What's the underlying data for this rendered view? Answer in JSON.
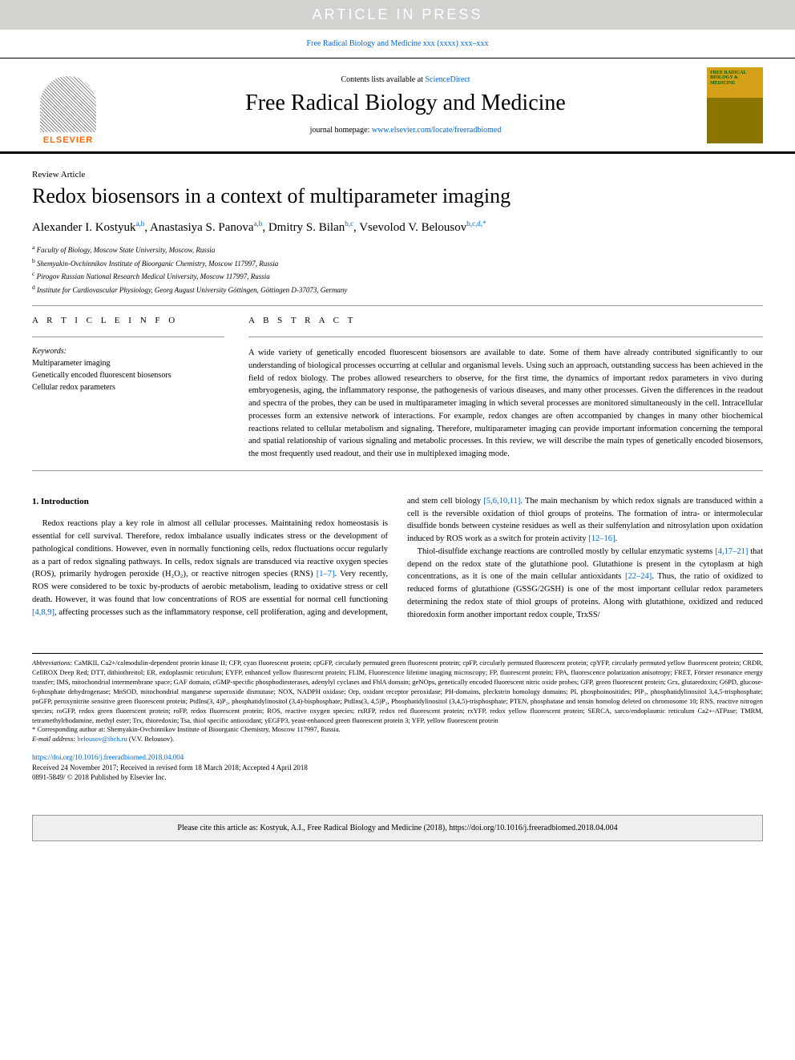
{
  "banner": "ARTICLE IN PRESS",
  "journal_ref": "Free Radical Biology and Medicine xxx (xxxx) xxx–xxx",
  "header": {
    "contents_prefix": "Contents lists available at ",
    "contents_link": "ScienceDirect",
    "journal_title": "Free Radical Biology and Medicine",
    "homepage_prefix": "journal homepage: ",
    "homepage_link": "www.elsevier.com/locate/freeradbiomed",
    "publisher_logo_text": "ELSEVIER",
    "cover_text": "FREE RADICAL BIOLOGY & MEDICINE"
  },
  "article": {
    "type": "Review Article",
    "title": "Redox biosensors in a context of multiparameter imaging",
    "authors_html": "Alexander I. Kostyuk<sup>a,b</sup>, Anastasiya S. Panova<sup>a,b</sup>, Dmitry S. Bilan<sup>b,c</sup>, Vsevolod V. Belousov<sup>b,c,d,*</sup>",
    "affiliations": [
      {
        "sup": "a",
        "text": "Faculty of Biology, Moscow State University, Moscow, Russia"
      },
      {
        "sup": "b",
        "text": "Shemyakin-Ovchinnikov Institute of Bioorganic Chemistry, Moscow 117997, Russia"
      },
      {
        "sup": "c",
        "text": "Pirogov Russian National Research Medical University, Moscow 117997, Russia"
      },
      {
        "sup": "d",
        "text": "Institute for Cardiovascular Physiology, Georg August University Göttingen, Göttingen D-37073, Germany"
      }
    ]
  },
  "info": {
    "heading": "A R T I C L E  I N F O",
    "keywords_label": "Keywords:",
    "keywords": [
      "Multiparameter imaging",
      "Genetically encoded fluorescent biosensors",
      "Cellular redox parameters"
    ]
  },
  "abstract": {
    "heading": "A B S T R A C T",
    "text": "A wide variety of genetically encoded fluorescent biosensors are available to date. Some of them have already contributed significantly to our understanding of biological processes occurring at cellular and organismal levels. Using such an approach, outstanding success has been achieved in the field of redox biology. The probes allowed researchers to observe, for the first time, the dynamics of important redox parameters in vivo during embryogenesis, aging, the inflammatory response, the pathogenesis of various diseases, and many other processes. Given the differences in the readout and spectra of the probes, they can be used in multiparameter imaging in which several processes are monitored simultaneously in the cell. Intracellular processes form an extensive network of interactions. For example, redox changes are often accompanied by changes in many other biochemical reactions related to cellular metabolism and signaling. Therefore, multiparameter imaging can provide important information concerning the temporal and spatial relationship of various signaling and metabolic processes. In this review, we will describe the main types of genetically encoded biosensors, the most frequently used readout, and their use in multiplexed imaging mode."
  },
  "body": {
    "section1_heading": "1. Introduction",
    "p1a": "Redox reactions play a key role in almost all cellular processes. Maintaining redox homeostasis is essential for cell survival. Therefore, redox imbalance usually indicates stress or the development of pathological conditions. However, even in normally functioning cells, redox fluctuations occur regularly as a part of redox signaling pathways. In cells, redox signals are transduced via reactive oxygen species (ROS), primarily hydrogen peroxide (H₂O₂), or reactive nitrogen species (RNS) ",
    "ref1": "[1–7]",
    "p1b": ". Very recently, ROS were considered to be toxic by-products of aerobic metabolism, leading to oxidative stress or cell death. However, it was found that low concentrations of ROS are essential for normal cell functioning ",
    "ref2": "[4,8,9]",
    "p1c": ", affecting processes such as the inflammatory response, cell proliferation, aging and development, and stem cell biology ",
    "ref3": "[5,6,10,11]",
    "p1d": ". The main mechanism by which redox signals are transduced within a cell is the reversible oxidation of thiol groups of proteins. The formation of intra- or intermolecular disulfide bonds between cysteine residues as well as their sulfenylation and nitrosylation upon oxidation induced by ROS work as a switch for protein activity ",
    "ref4": "[12–16]",
    "p1e": ".",
    "p2a": "Thiol-disulfide exchange reactions are controlled mostly by cellular enzymatic systems ",
    "ref5": "[4,17–21]",
    "p2b": " that depend on the redox state of the glutathione pool. Glutathione is present in the cytoplasm at high concentrations, as it is one of the main cellular antioxidants ",
    "ref6": "[22–24]",
    "p2c": ". Thus, the ratio of oxidized to reduced forms of glutathione (GSSG/2GSH) is one of the most important cellular redox parameters determining the redox state of thiol groups of proteins. Along with glutathione, oxidized and reduced thioredoxin form another important redox couple, TrxSS/"
  },
  "footnotes": {
    "abbrev_label": "Abbreviations:",
    "abbrev_text": " CaMKII, Ca2+/calmodulin-dependent protein kinase II; CFP, cyan fluorescent protein; cpGFP, circularly permuted green fluorescent protein; cpFP, circularly permuted fluorescent protein; cpYFP, circularly permuted yellow fluorescent protein; CRDR, CellROX Deep Red; DTT, dithiothreitol; ER, endoplasmic reticulum; EYFP, enhanced yellow fluorescent protein; FLIM, Fluorescence lifetime imaging microscopy; FP, fluorescent protein; FPA, fluorescence polarization anisotropy; FRET, Förster resonance energy transfer; IMS, mitochondrial intermembrane space; GAF domain, cGMP-specific phosphodiesterases, adenylyl cyclases and FhlA domain; geNOps, genetically encoded fluorescent nitric oxide probes; GFP, green fluorescent protein; Grx, glutaredoxin; G6PD, glucose-6-phosphate dehydrogenase; MnSOD, mitochondrial manganese superoxide dismutase; NOX, NADPH oxidase; Orp, oxidant receptor peroxidase; PH-domains, pleckstrin homology domains; PI, phosphoinositides; PIP₃, phosphatidylinositol 3,4,5-trisphosphate; pnGFP, peroxynitrite sensitive green fluorescent protein; PtdIns(3, 4)P₂, phosphatidylinositol (3,4)-bisphosphate; PtdIns(3, 4,5)P₃, Phosphatidylinositol (3,4,5)-trisphosphate; PTEN, phosphatase and tensin homolog deleted on chromosome 10; RNS, reactive nitrogen species; roGFP, redox green fluorescent protein; roFP, redox fluorescent protein; ROS, reactive oxygen species; rxRFP, redox red fluorescent protein; rxYFP, redox yellow fluorescent protein; SERCA, sarco/endoplasmic reticulum Ca2+-ATPase; TMRM, tetramethylrhodamine, methyl ester; Trx, thioredoxin; Tsa, thiol specific antioxidant; yEGFP3, yeast-enhanced green fluorescent protein 3; YFP, yellow fluorescent protein",
    "corr_label": "* Corresponding author at: Shemyakin-Ovchinnikov Institute of Bioorganic Chemistry, Moscow 117997, Russia.",
    "email_label": "E-mail address: ",
    "email": "belousov@ibch.ru",
    "email_suffix": " (V.V. Belousov)."
  },
  "doi": {
    "link": "https://doi.org/10.1016/j.freeradbiomed.2018.04.004",
    "received": "Received 24 November 2017; Received in revised form 18 March 2018; Accepted 4 April 2018",
    "copyright": "0891-5849/ © 2018 Published by Elsevier Inc."
  },
  "citebox": "Please cite this article as: Kostyuk, A.I., Free Radical Biology and Medicine (2018), https://doi.org/10.1016/j.freeradbiomed.2018.04.004"
}
